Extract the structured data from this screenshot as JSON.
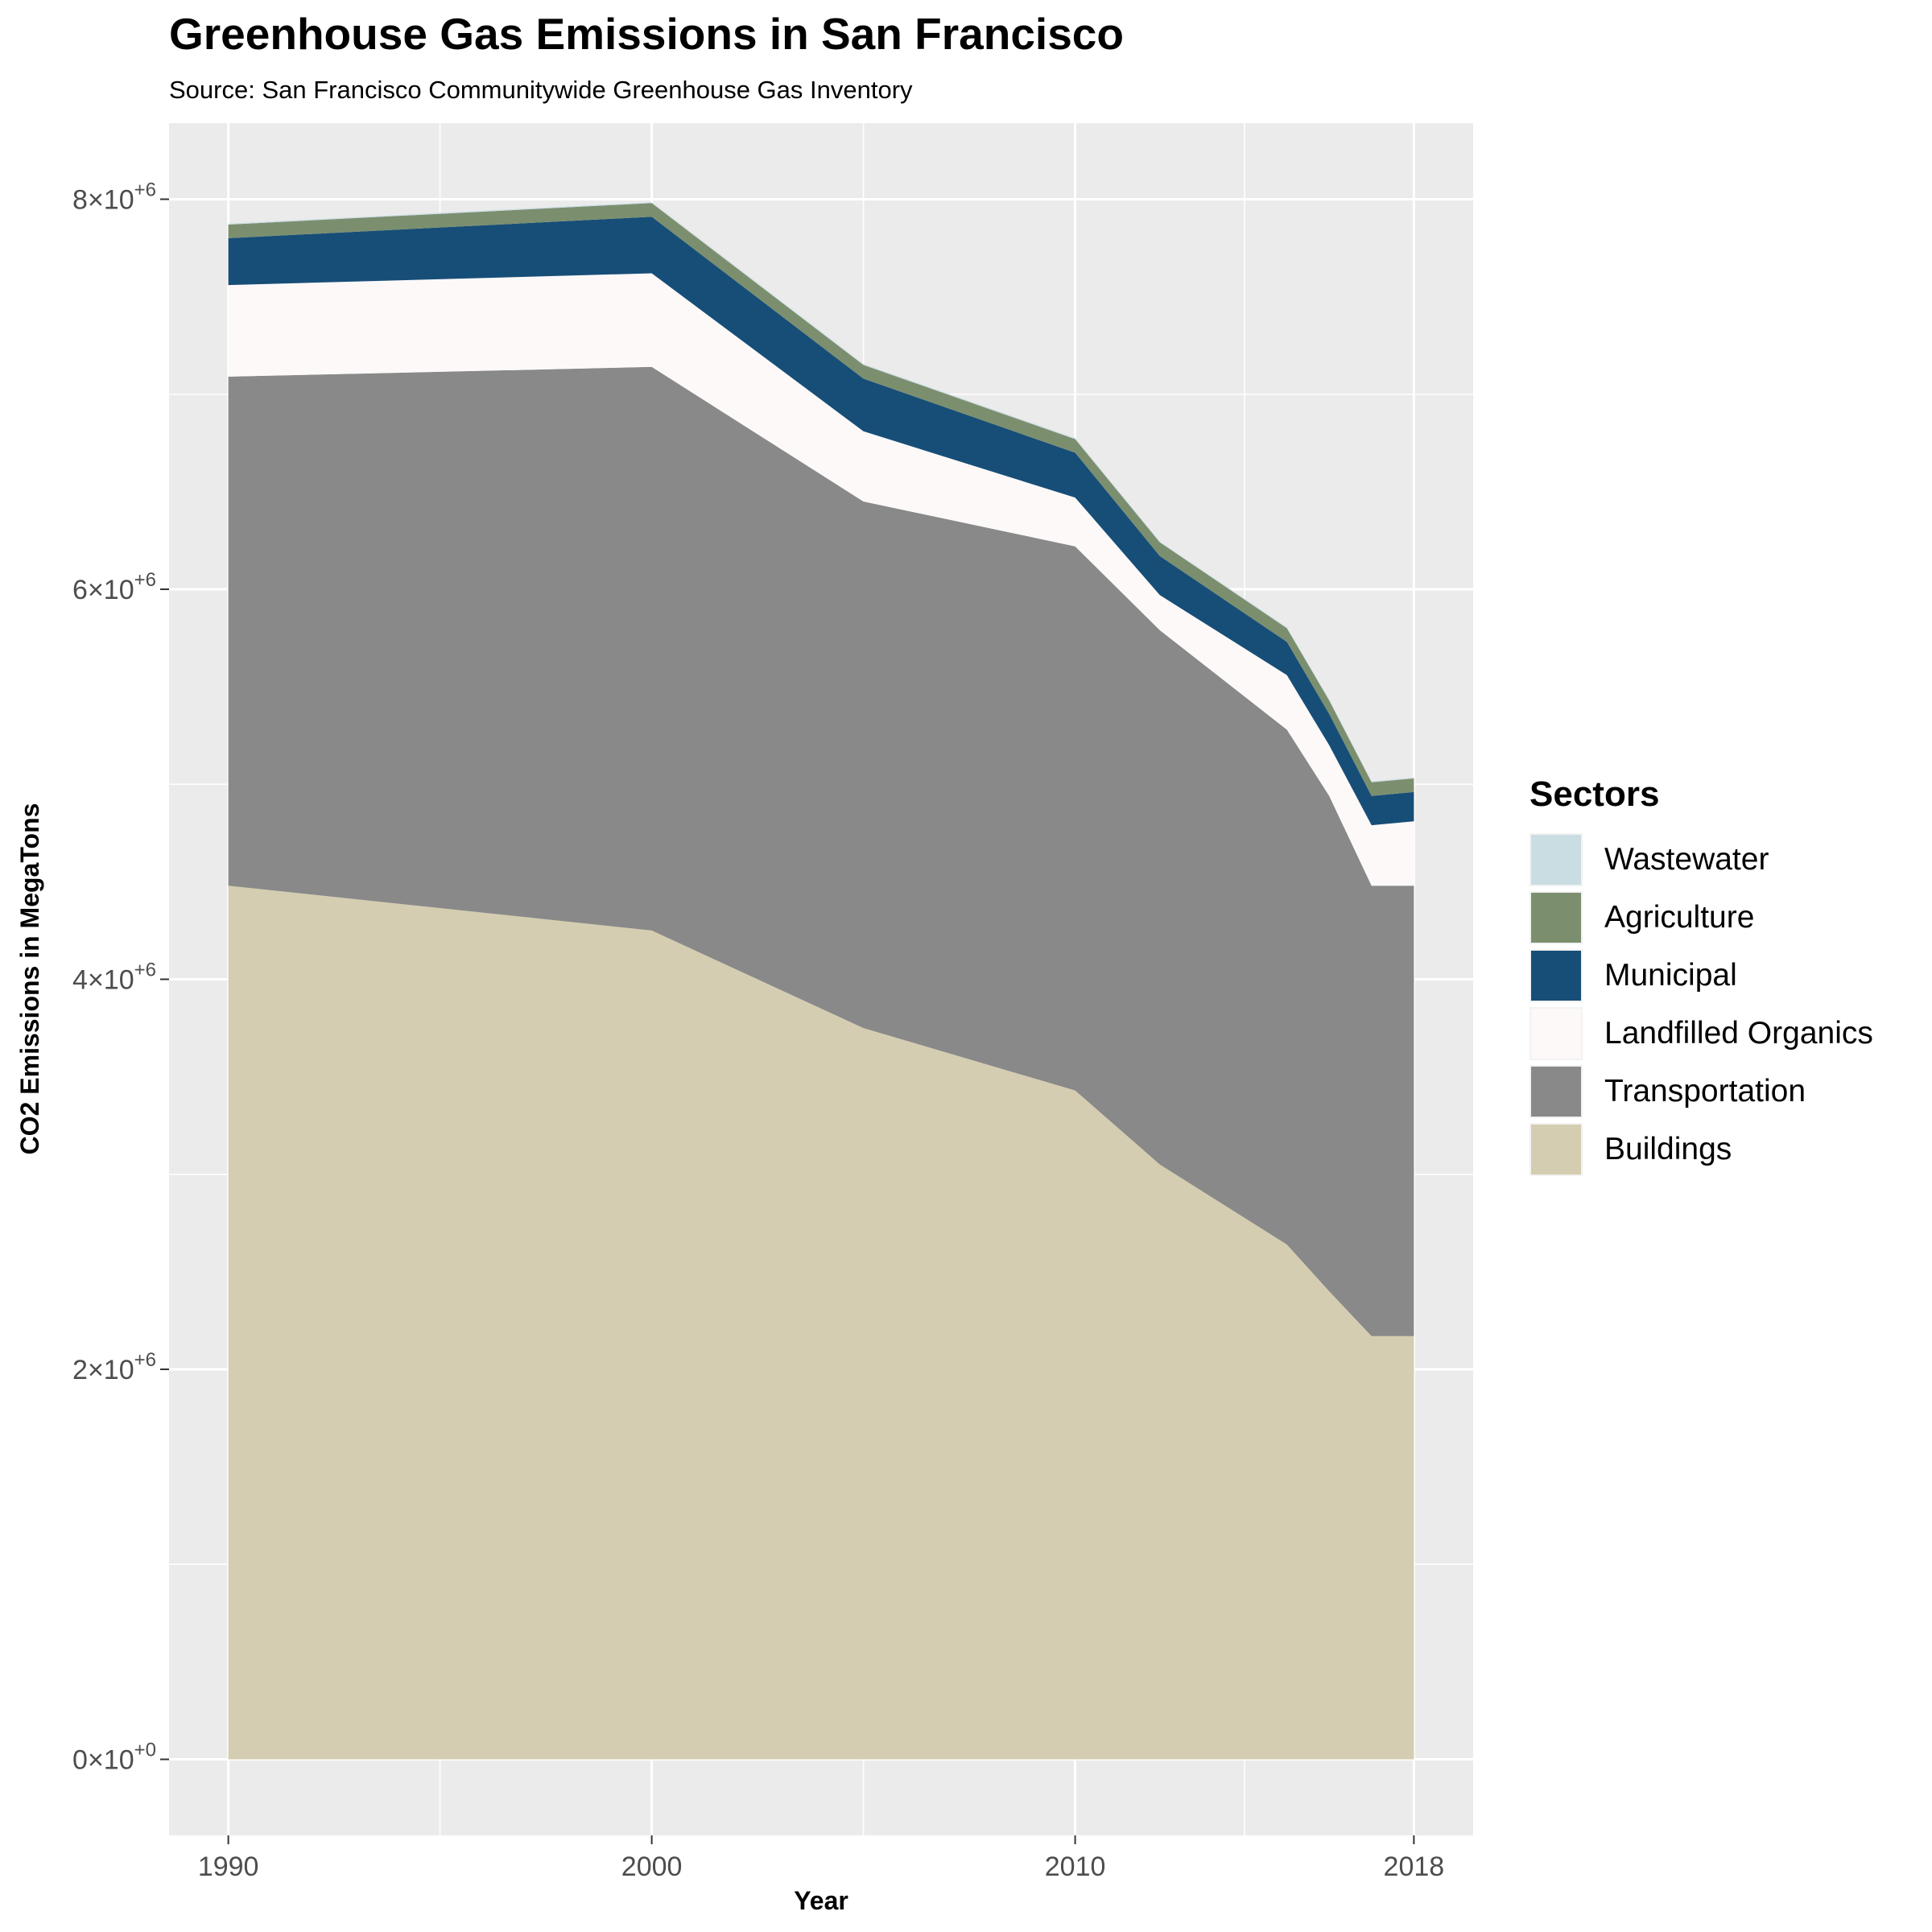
{
  "chart_data": {
    "type": "area",
    "stacked": true,
    "title": "Greenhouse Gas Emissions in San Francisco",
    "subtitle": "Source: San Francisco Communitywide Greenhouse Gas Inventory",
    "xlabel": "Year",
    "ylabel": "CO2 Emissions in MegaTons",
    "xlim": [
      1988.6,
      2019.4
    ],
    "ylim": [
      -390000,
      8390000
    ],
    "x_ticks": [
      {
        "value": 1990,
        "label": "1990"
      },
      {
        "value": 2000,
        "label": "2000"
      },
      {
        "value": 2010,
        "label": "2010"
      },
      {
        "value": 2018,
        "label": "2018"
      }
    ],
    "x_minor_grid": [
      1995,
      2005,
      2014
    ],
    "y_ticks": [
      {
        "value": 0,
        "mantissa": "0",
        "exponent": "0"
      },
      {
        "value": 2000000,
        "mantissa": "2",
        "exponent": "6"
      },
      {
        "value": 4000000,
        "mantissa": "4",
        "exponent": "6"
      },
      {
        "value": 6000000,
        "mantissa": "6",
        "exponent": "6"
      },
      {
        "value": 8000000,
        "mantissa": "8",
        "exponent": "6"
      }
    ],
    "y_minor_grid": [
      1000000,
      3000000,
      5000000,
      7000000
    ],
    "grid": true,
    "legend": {
      "title": "Sectors",
      "position": "right"
    },
    "x": [
      1990,
      2000,
      2005,
      2010,
      2012,
      2015,
      2016,
      2017,
      2018
    ],
    "series": [
      {
        "name": "Buildings",
        "color": "#d4cdb1",
        "values": [
          4480000,
          4250000,
          3750000,
          3430000,
          3050000,
          2640000,
          2400000,
          2170000,
          2170000
        ]
      },
      {
        "name": "Transportation",
        "color": "#898989",
        "values": [
          2610000,
          2890000,
          2700000,
          2790000,
          2740000,
          2640000,
          2540000,
          2310000,
          2310000
        ]
      },
      {
        "name": "Landfilled Organics",
        "color": "#fdf9f9",
        "values": [
          470000,
          480000,
          360000,
          250000,
          180000,
          280000,
          260000,
          310000,
          330000
        ]
      },
      {
        "name": "Municipal",
        "color": "#174e78",
        "values": [
          240000,
          290000,
          270000,
          230000,
          200000,
          170000,
          160000,
          150000,
          150000
        ]
      },
      {
        "name": "Agriculture",
        "color": "#7b8f6f",
        "values": [
          70000,
          70000,
          70000,
          70000,
          70000,
          70000,
          70000,
          70000,
          70000
        ]
      },
      {
        "name": "Wastewater",
        "color": "#cadde3",
        "values": [
          5000,
          5000,
          5000,
          5000,
          5000,
          5000,
          5000,
          5000,
          5000
        ]
      }
    ],
    "legend_order": [
      "Wastewater",
      "Agriculture",
      "Municipal",
      "Landfilled Organics",
      "Transportation",
      "Buildings"
    ]
  }
}
